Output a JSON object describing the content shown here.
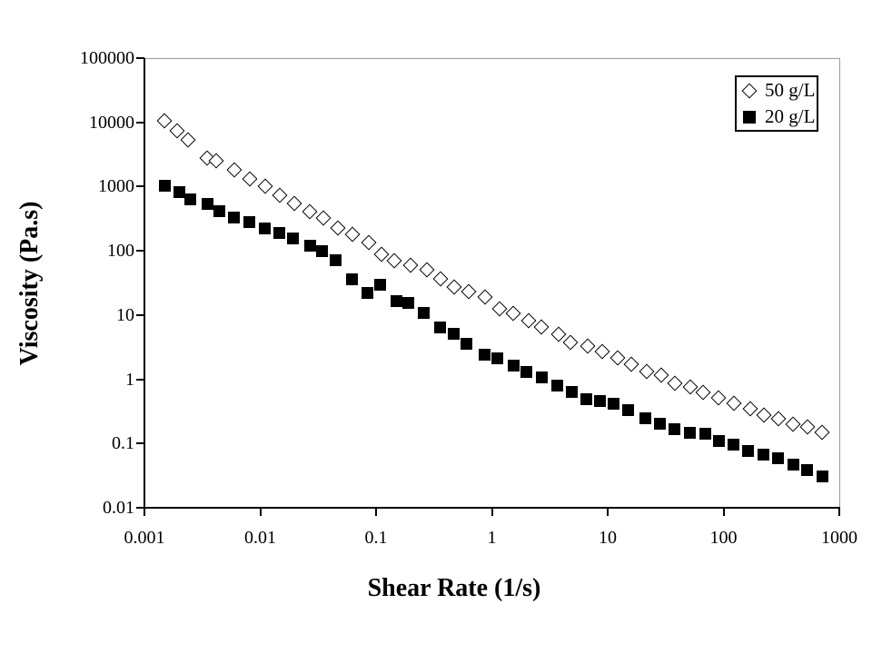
{
  "figure": {
    "background": "#ffffff",
    "axis_color": "#000000",
    "frame_color": "#9a9a9a",
    "marker_outline_color": "#000000",
    "marker_fill_open": "#ffffff",
    "marker_fill_solid": "#000000"
  },
  "chart_data": {
    "type": "scatter",
    "title": "",
    "xlabel": "Shear Rate (1/s)",
    "ylabel": "Viscosity (Pa.s)",
    "x_scale": "log",
    "y_scale": "log",
    "xlim": [
      0.001,
      1000
    ],
    "ylim": [
      0.01,
      100000
    ],
    "x_ticks": [
      0.001,
      0.01,
      0.1,
      1,
      10,
      100,
      1000
    ],
    "x_tick_labels": [
      "0.001",
      "0.01",
      "0.1",
      "1",
      "10",
      "100",
      "1000"
    ],
    "y_ticks": [
      100000,
      10000,
      1000,
      100,
      10,
      1,
      0.1,
      0.01
    ],
    "y_tick_labels": [
      "100000",
      "10000",
      "1000",
      "100",
      "10",
      "1",
      "0.1",
      "0.01"
    ],
    "grid": false,
    "legend": {
      "position": "top-right",
      "entries": [
        {
          "label": "50 g/L",
          "marker": "open-diamond"
        },
        {
          "label": "20 g/L",
          "marker": "filled-square"
        }
      ]
    },
    "series": [
      {
        "name": "50 g/L",
        "marker": "open-diamond",
        "points": [
          [
            0.0015,
            10500
          ],
          [
            0.0019,
            7400
          ],
          [
            0.0024,
            5400
          ],
          [
            0.0035,
            2800
          ],
          [
            0.0042,
            2500
          ],
          [
            0.006,
            1800
          ],
          [
            0.0081,
            1330
          ],
          [
            0.011,
            1020
          ],
          [
            0.0147,
            740
          ],
          [
            0.0197,
            550
          ],
          [
            0.027,
            410
          ],
          [
            0.035,
            320
          ],
          [
            0.047,
            230
          ],
          [
            0.062,
            183
          ],
          [
            0.086,
            133
          ],
          [
            0.111,
            87
          ],
          [
            0.143,
            71
          ],
          [
            0.2,
            59
          ],
          [
            0.275,
            51
          ],
          [
            0.36,
            37
          ],
          [
            0.47,
            27
          ],
          [
            0.63,
            23
          ],
          [
            0.87,
            18.8
          ],
          [
            1.17,
            12.7
          ],
          [
            1.53,
            10.5
          ],
          [
            2.08,
            8.1
          ],
          [
            2.7,
            6.6
          ],
          [
            3.8,
            5.0
          ],
          [
            4.8,
            3.8
          ],
          [
            6.7,
            3.3
          ],
          [
            9.0,
            2.7
          ],
          [
            12.2,
            2.13
          ],
          [
            16,
            1.7
          ],
          [
            21.7,
            1.31
          ],
          [
            28.9,
            1.15
          ],
          [
            38,
            0.86
          ],
          [
            52,
            0.75
          ],
          [
            67,
            0.62
          ],
          [
            90,
            0.51
          ],
          [
            122,
            0.42
          ],
          [
            169,
            0.35
          ],
          [
            222,
            0.28
          ],
          [
            297,
            0.24
          ],
          [
            400,
            0.2
          ],
          [
            530,
            0.18
          ],
          [
            710,
            0.15
          ]
        ]
      },
      {
        "name": "20 g/L",
        "marker": "filled-square",
        "points": [
          [
            0.0015,
            1020
          ],
          [
            0.002,
            820
          ],
          [
            0.0025,
            630
          ],
          [
            0.0035,
            530
          ],
          [
            0.0044,
            410
          ],
          [
            0.0059,
            330
          ],
          [
            0.0081,
            280
          ],
          [
            0.011,
            220
          ],
          [
            0.0145,
            187
          ],
          [
            0.019,
            154
          ],
          [
            0.027,
            122
          ],
          [
            0.034,
            98
          ],
          [
            0.045,
            71
          ],
          [
            0.062,
            36
          ],
          [
            0.084,
            22
          ],
          [
            0.109,
            30
          ],
          [
            0.149,
            16.4
          ],
          [
            0.19,
            15.3
          ],
          [
            0.26,
            10.7
          ],
          [
            0.36,
            6.4
          ],
          [
            0.47,
            5.1
          ],
          [
            0.6,
            3.6
          ],
          [
            0.87,
            2.4
          ],
          [
            1.12,
            2.1
          ],
          [
            1.53,
            1.64
          ],
          [
            2.0,
            1.31
          ],
          [
            2.7,
            1.08
          ],
          [
            3.7,
            0.8
          ],
          [
            4.9,
            0.64
          ],
          [
            6.6,
            0.49
          ],
          [
            8.5,
            0.46
          ],
          [
            11.3,
            0.42
          ],
          [
            15.1,
            0.33
          ],
          [
            21.3,
            0.25
          ],
          [
            28.4,
            0.2
          ],
          [
            38,
            0.167
          ],
          [
            51,
            0.147
          ],
          [
            70,
            0.142
          ],
          [
            92,
            0.109
          ],
          [
            122,
            0.097
          ],
          [
            163,
            0.077
          ],
          [
            222,
            0.068
          ],
          [
            297,
            0.059
          ],
          [
            400,
            0.047
          ],
          [
            530,
            0.039
          ],
          [
            710,
            0.031
          ]
        ]
      }
    ]
  }
}
